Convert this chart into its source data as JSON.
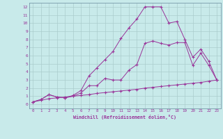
{
  "xlabel": "Windchill (Refroidissement éolien,°C)",
  "bg_color": "#c8eaea",
  "line_color": "#993399",
  "grid_color": "#aacccc",
  "xlim": [
    -0.5,
    23.5
  ],
  "ylim": [
    -0.5,
    12.5
  ],
  "xticks": [
    0,
    1,
    2,
    3,
    4,
    5,
    6,
    7,
    8,
    9,
    10,
    11,
    12,
    13,
    14,
    15,
    16,
    17,
    18,
    19,
    20,
    21,
    22,
    23
  ],
  "yticks": [
    0,
    1,
    2,
    3,
    4,
    5,
    6,
    7,
    8,
    9,
    10,
    11,
    12
  ],
  "line1_x": [
    0,
    1,
    2,
    3,
    4,
    5,
    6,
    7,
    8,
    9,
    10,
    11,
    12,
    13,
    14,
    15,
    16,
    17,
    18,
    19,
    20,
    21,
    22,
    23
  ],
  "line1_y": [
    0.3,
    0.5,
    0.7,
    0.8,
    0.9,
    1.0,
    1.1,
    1.2,
    1.35,
    1.45,
    1.55,
    1.65,
    1.75,
    1.85,
    2.0,
    2.1,
    2.2,
    2.3,
    2.4,
    2.5,
    2.6,
    2.7,
    2.85,
    3.0
  ],
  "line2_x": [
    0,
    1,
    2,
    3,
    4,
    5,
    6,
    7,
    8,
    9,
    10,
    11,
    12,
    13,
    14,
    15,
    16,
    17,
    18,
    19,
    20,
    21,
    22,
    23
  ],
  "line2_y": [
    0.3,
    0.6,
    1.2,
    0.9,
    0.8,
    1.0,
    1.4,
    2.3,
    2.3,
    3.2,
    3.0,
    3.0,
    4.2,
    4.9,
    7.5,
    7.8,
    7.5,
    7.3,
    7.6,
    7.6,
    4.8,
    6.3,
    4.8,
    3.0
  ],
  "line3_x": [
    0,
    1,
    2,
    3,
    4,
    5,
    6,
    7,
    8,
    9,
    10,
    11,
    12,
    13,
    14,
    15,
    16,
    17,
    18,
    19,
    20,
    21,
    22,
    23
  ],
  "line3_y": [
    0.3,
    0.6,
    1.2,
    0.9,
    0.8,
    1.1,
    1.7,
    3.5,
    4.5,
    5.5,
    6.5,
    8.1,
    9.4,
    10.5,
    12.0,
    12.0,
    12.0,
    10.0,
    10.2,
    8.0,
    5.8,
    6.8,
    5.3,
    3.0
  ]
}
